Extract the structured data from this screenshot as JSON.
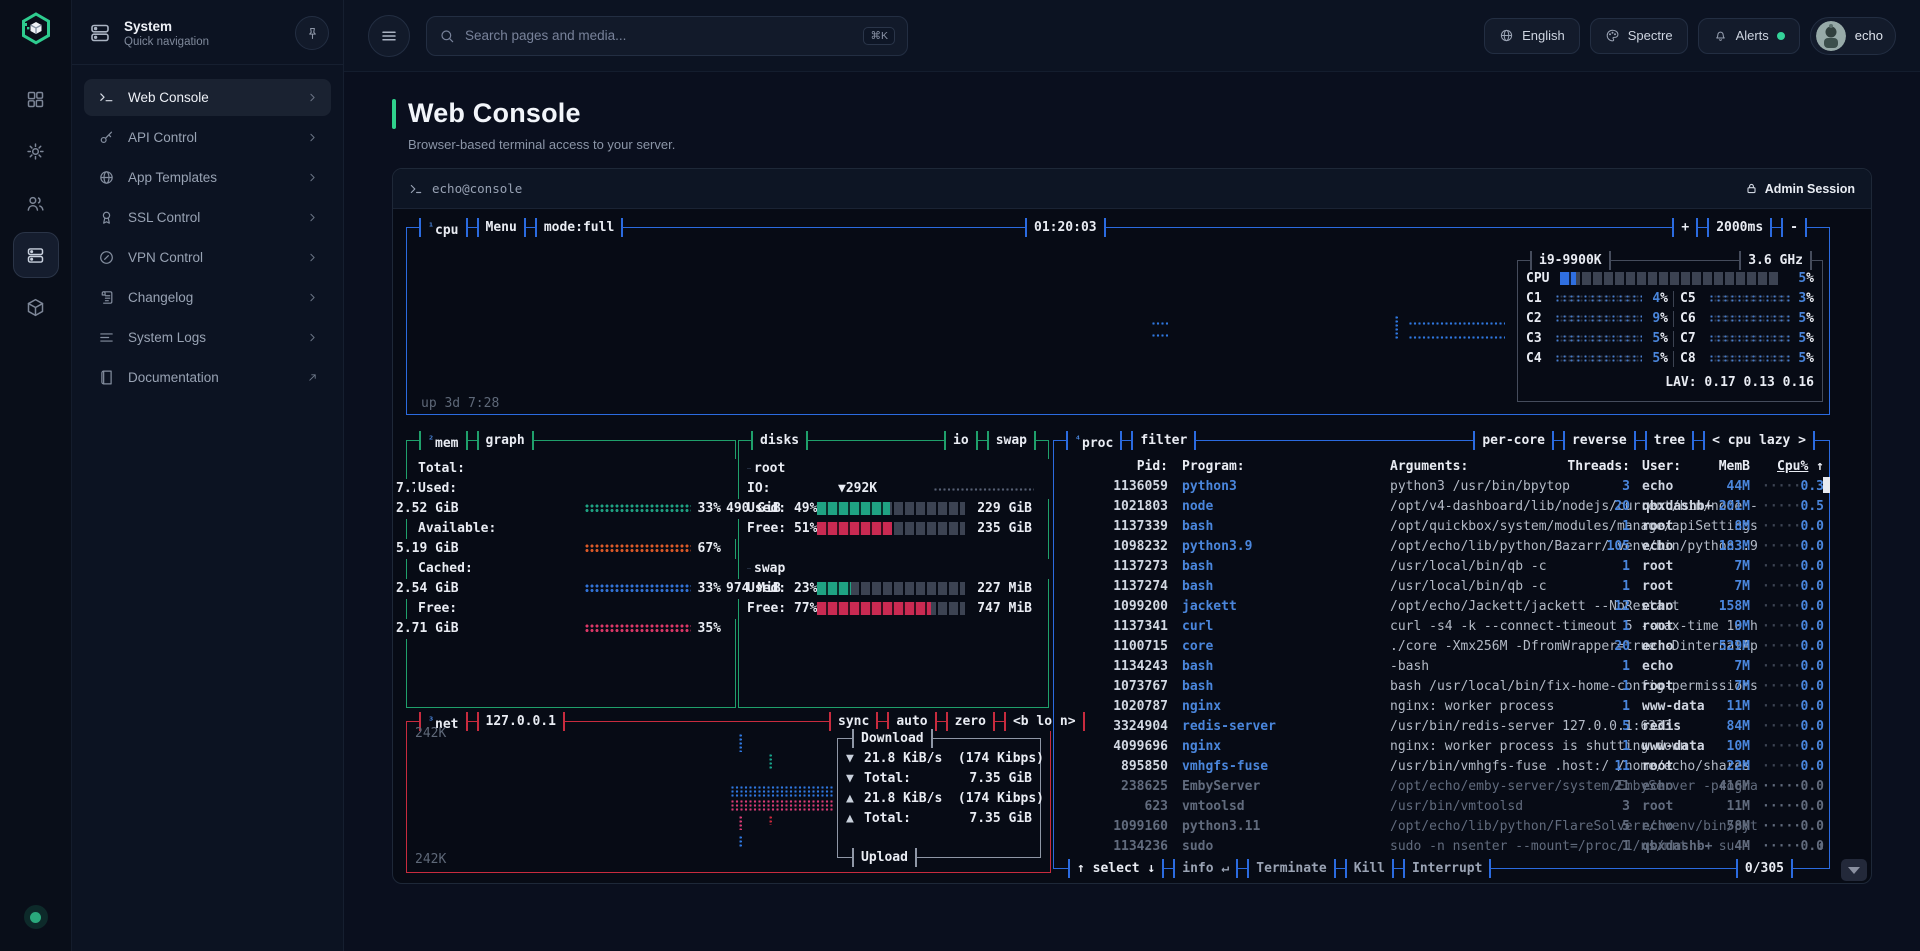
{
  "ui": {
    "sidebar": {
      "title": "System",
      "subtitle": "Quick navigation",
      "items": [
        {
          "label": "Web Console",
          "icon": "terminal",
          "active": true
        },
        {
          "label": "API Control",
          "icon": "key"
        },
        {
          "label": "App Templates",
          "icon": "globe"
        },
        {
          "label": "SSL Control",
          "icon": "award"
        },
        {
          "label": "VPN Control",
          "icon": "compass"
        },
        {
          "label": "Changelog",
          "icon": "scroll"
        },
        {
          "label": "System Logs",
          "icon": "lines"
        },
        {
          "label": "Documentation",
          "icon": "book",
          "external": true
        }
      ]
    },
    "topbar": {
      "search_placeholder": "Search pages and media...",
      "search_shortcut": "⌘K",
      "language": "English",
      "theme": "Spectre",
      "alerts_label": "Alerts",
      "user": "echo"
    },
    "page": {
      "title": "Web Console",
      "subtitle": "Browser-based terminal access to your server."
    },
    "terminal_header": {
      "host": "echo@console",
      "session": "Admin Session"
    }
  },
  "colors": {
    "accent_green": "#2fd18c",
    "cpu_border": "#2b6be0",
    "mem_border": "#1fa06b",
    "net_border": "#c82b3e",
    "sub_border": "#454c5c",
    "teal": "#1fa383",
    "orange": "#dd5a28",
    "blue": "#3173d8",
    "pink": "#dd3868",
    "crimson": "#c92a52"
  },
  "terminal": {
    "cpu": {
      "tabs": [
        {
          "sup": "¹",
          "label": "cpu"
        },
        {
          "label": "Menu"
        },
        {
          "label": "mode:full"
        }
      ],
      "clock": "01:20:03",
      "right_tabs": [
        "+",
        "2000ms",
        "-"
      ],
      "uptime": "up 3d 7:28",
      "model": "i9-9900K",
      "freq": "3.6 GHz",
      "total": {
        "label": "CPU",
        "pct": "5"
      },
      "cores": [
        {
          "name": "C1",
          "pct": "4"
        },
        {
          "name": "C2",
          "pct": "9"
        },
        {
          "name": "C3",
          "pct": "5"
        },
        {
          "name": "C4",
          "pct": "5"
        },
        {
          "name": "C5",
          "pct": "3"
        },
        {
          "name": "C6",
          "pct": "5"
        },
        {
          "name": "C7",
          "pct": "5"
        },
        {
          "name": "C8",
          "pct": "5"
        }
      ],
      "lav": "LAV: 0.17 0.13 0.16"
    },
    "mem": {
      "tabs": [
        {
          "sup": "²",
          "label": "mem"
        },
        {
          "label": "graph"
        }
      ],
      "rows": [
        {
          "label": "Total:",
          "value": "7.72 GiB"
        },
        {
          "label": "Used:",
          "value": "2.52 GiB",
          "pct": "33%",
          "color": "#1fa383"
        },
        {
          "label": "Available:",
          "value": "5.19 GiB",
          "pct": "67%",
          "color": "#dd5a28"
        },
        {
          "label": "Cached:",
          "value": "2.54 GiB",
          "pct": "33%",
          "color": "#3173d8"
        },
        {
          "label": "Free:",
          "value": "2.71 GiB",
          "pct": "35%",
          "color": "#dd3868"
        }
      ]
    },
    "disks": {
      "title": "disks",
      "tabs": [
        "io",
        "swap"
      ],
      "sections": [
        {
          "name": "root",
          "io": "▼292K",
          "total": "490 GiB",
          "io_label": "IO:",
          "rows": [
            {
              "label": "Used:",
              "pct": "49%",
              "value": "229 GiB",
              "fill": 49,
              "color": "#1fa383"
            },
            {
              "label": "Free:",
              "pct": "51%",
              "value": "235 GiB",
              "fill": 51,
              "color": "#c92a52"
            }
          ]
        },
        {
          "name": "swap",
          "total": "974 MiB",
          "rows": [
            {
              "label": "Used:",
              "pct": "23%",
              "value": "227 MiB",
              "fill": 23,
              "color": "#1fa383"
            },
            {
              "label": "Free:",
              "pct": "77%",
              "value": "747 MiB",
              "fill": 77,
              "color": "#c92a52"
            }
          ]
        }
      ]
    },
    "net": {
      "tabs": [
        {
          "sup": "³",
          "label": "net"
        },
        {
          "label": "127.0.0.1"
        }
      ],
      "right_tabs": [
        "sync",
        "auto",
        "zero",
        "<b lo n>"
      ],
      "scale_top": "242K",
      "scale_bottom": "242K",
      "download_title": "Download",
      "upload_title": "Upload",
      "rows": [
        {
          "arrow": "▼",
          "text": "21.8 KiB/s  (174 Kibps)"
        },
        {
          "arrow": "▼",
          "label": "Total:",
          "value": "7.35 GiB"
        },
        {
          "arrow": "▲",
          "text": "21.8 KiB/s  (174 Kibps)"
        },
        {
          "arrow": "▲",
          "label": "Total:",
          "value": "7.35 GiB"
        }
      ]
    },
    "proc": {
      "tabs": [
        {
          "sup": "⁴",
          "label": "proc"
        },
        {
          "label": "filter"
        }
      ],
      "right_tabs": [
        "per-core",
        "reverse",
        "tree",
        "< cpu lazy >"
      ],
      "columns": {
        "pid": "Pid:",
        "program": "Program:",
        "args": "Arguments:",
        "threads": "Threads:",
        "user": "User:",
        "mem": "MemB",
        "cpu": "Cpu%",
        "sort_arrow": "↑"
      },
      "rows": [
        {
          "pid": "1136059",
          "program": "python3",
          "args": "python3 /usr/bin/bpytop",
          "threads": "3",
          "user": "echo",
          "mem": "44M",
          "cpu": "0.3"
        },
        {
          "pid": "1021803",
          "program": "node",
          "args": "/opt/v4-dashboard/lib/nodejs/current/bin/node -",
          "threads": "20",
          "user": "qbxdashb+",
          "mem": "201M",
          "cpu": "0.5"
        },
        {
          "pid": "1137339",
          "program": "bash",
          "args": "/opt/quickbox/system/modules/manage/apiSettings",
          "threads": "1",
          "user": "root",
          "mem": "8M",
          "cpu": "0.0"
        },
        {
          "pid": "1098232",
          "program": "python3.9",
          "args": "/opt/echo/lib/python/Bazarr/.venv/bin/python3.9",
          "threads": "105",
          "user": "echo",
          "mem": "183M",
          "cpu": "0.0"
        },
        {
          "pid": "1137273",
          "program": "bash",
          "args": "/usr/local/bin/qb -c",
          "threads": "1",
          "user": "root",
          "mem": "7M",
          "cpu": "0.0"
        },
        {
          "pid": "1137274",
          "program": "bash",
          "args": "/usr/local/bin/qb -c",
          "threads": "1",
          "user": "root",
          "mem": "7M",
          "cpu": "0.0"
        },
        {
          "pid": "1099200",
          "program": "jackett",
          "args": "/opt/echo/Jackett/jackett --NoRestart",
          "threads": "12",
          "user": "echo",
          "mem": "158M",
          "cpu": "0.0"
        },
        {
          "pid": "1137341",
          "program": "curl",
          "args": "curl -s4 -k --connect-timeout 5 --max-time 10 h",
          "threads": "1",
          "user": "root",
          "mem": "9M",
          "cpu": "0.0"
        },
        {
          "pid": "1100715",
          "program": "core",
          "args": "./core -Xmx256M -DfromWrapper=true -DinternalAp",
          "threads": "20",
          "user": "echo",
          "mem": "529M",
          "cpu": "0.0"
        },
        {
          "pid": "1134243",
          "program": "bash",
          "args": "-bash",
          "threads": "1",
          "user": "echo",
          "mem": "7M",
          "cpu": "0.0"
        },
        {
          "pid": "1073767",
          "program": "bash",
          "args": "bash /usr/local/bin/fix-home-config-permissions",
          "threads": "1",
          "user": "root",
          "mem": "7M",
          "cpu": "0.0"
        },
        {
          "pid": "1020787",
          "program": "nginx",
          "args": "nginx: worker process",
          "threads": "1",
          "user": "www-data",
          "mem": "11M",
          "cpu": "0.0"
        },
        {
          "pid": "3324904",
          "program": "redis-server",
          "args": "/usr/bin/redis-server 127.0.0.1:6333",
          "threads": "5",
          "user": "redis",
          "mem": "84M",
          "cpu": "0.0"
        },
        {
          "pid": "4099696",
          "program": "nginx",
          "args": "nginx: worker process is shutting down",
          "threads": "1",
          "user": "www-data",
          "mem": "10M",
          "cpu": "0.0"
        },
        {
          "pid": "895850",
          "program": "vmhgfs-fuse",
          "args": "/usr/bin/vmhgfs-fuse .host:/ /home/echo/shares",
          "threads": "11",
          "user": "root",
          "mem": "22M",
          "cpu": "0.0"
        },
        {
          "pid": "238625",
          "program": "EmbyServer",
          "args": "/opt/echo/emby-server/system/EmbyServer -progra",
          "threads": "21",
          "user": "echo",
          "mem": "416M",
          "cpu": "0.0",
          "dim": true
        },
        {
          "pid": "623",
          "program": "vmtoolsd",
          "args": "/usr/bin/vmtoolsd",
          "threads": "3",
          "user": "root",
          "mem": "11M",
          "cpu": "0.0",
          "dim": true
        },
        {
          "pid": "1099160",
          "program": "python3.11",
          "args": "/opt/echo/lib/python/FlareSolverr/.venv/bin/pyt",
          "threads": "5",
          "user": "echo",
          "mem": "58M",
          "cpu": "0.0",
          "dim": true
        },
        {
          "pid": "1134236",
          "program": "sudo",
          "args": "sudo -n nsenter --mount=/proc/1/ns/mnt -- su -",
          "threads": "1",
          "user": "qbxdashb+",
          "mem": "4M",
          "cpu": "0.0",
          "dim": true,
          "marker": "↓"
        }
      ],
      "footer": {
        "select": "↑ select ↓",
        "info": "info ↵",
        "terminate": "Terminate",
        "kill": "Kill",
        "interrupt": "Interrupt",
        "count": "0/305"
      }
    }
  }
}
